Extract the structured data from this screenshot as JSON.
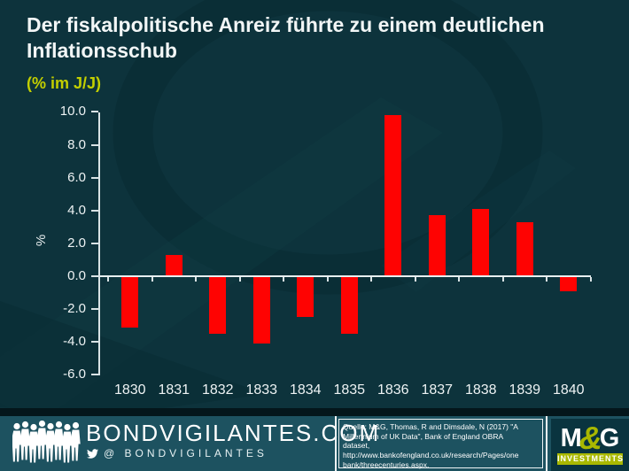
{
  "title": "Der fiskalpolitische Anreiz führte zu einem deutlichen Inflationsschub",
  "subtitle": "(% im J/J)",
  "chart_data": {
    "type": "bar",
    "categories": [
      "1830",
      "1831",
      "1832",
      "1833",
      "1834",
      "1835",
      "1836",
      "1837",
      "1838",
      "1839",
      "1840"
    ],
    "values": [
      -3.1,
      1.3,
      -3.5,
      -4.1,
      -2.5,
      -3.5,
      9.8,
      3.7,
      4.1,
      3.3,
      -0.9
    ],
    "title": "Der fiskalpolitische Anreiz führte zu einem deutlichen Inflationsschub",
    "xlabel": "",
    "ylabel": "%",
    "ylim": [
      -6.0,
      10.0
    ],
    "y_ticks": [
      "10.0",
      "8.0",
      "6.0",
      "4.0",
      "2.0",
      "0.0",
      "-2.0",
      "-4.0",
      "-6.0"
    ],
    "grid": "off",
    "legend": "none",
    "bar_color": "#fe0302"
  },
  "footer": {
    "site": "BONDVIGILANTES.COM",
    "twitter_handle": "@ BONDVIGILANTES",
    "source_lines": [
      "Quelle: M&G,  Thomas, R and Dimsdale, N (2017) \"A",
      "Millennium of UK Data\", Bank of England OBRA",
      "dataset,",
      "http://www.bankofengland.co.uk/research/Pages/one",
      "bank/threecenturies.aspx."
    ],
    "logo": {
      "m": "M",
      "amp": "&",
      "g": "G",
      "sub": "INVESTMENTS"
    }
  },
  "colors": {
    "background": "#0d333c",
    "footer_bg": "#1d5260",
    "bar": "#fe0302",
    "subtitle": "#c3cf00",
    "olive": "#a9b800",
    "axis": "#d9e3e5"
  }
}
